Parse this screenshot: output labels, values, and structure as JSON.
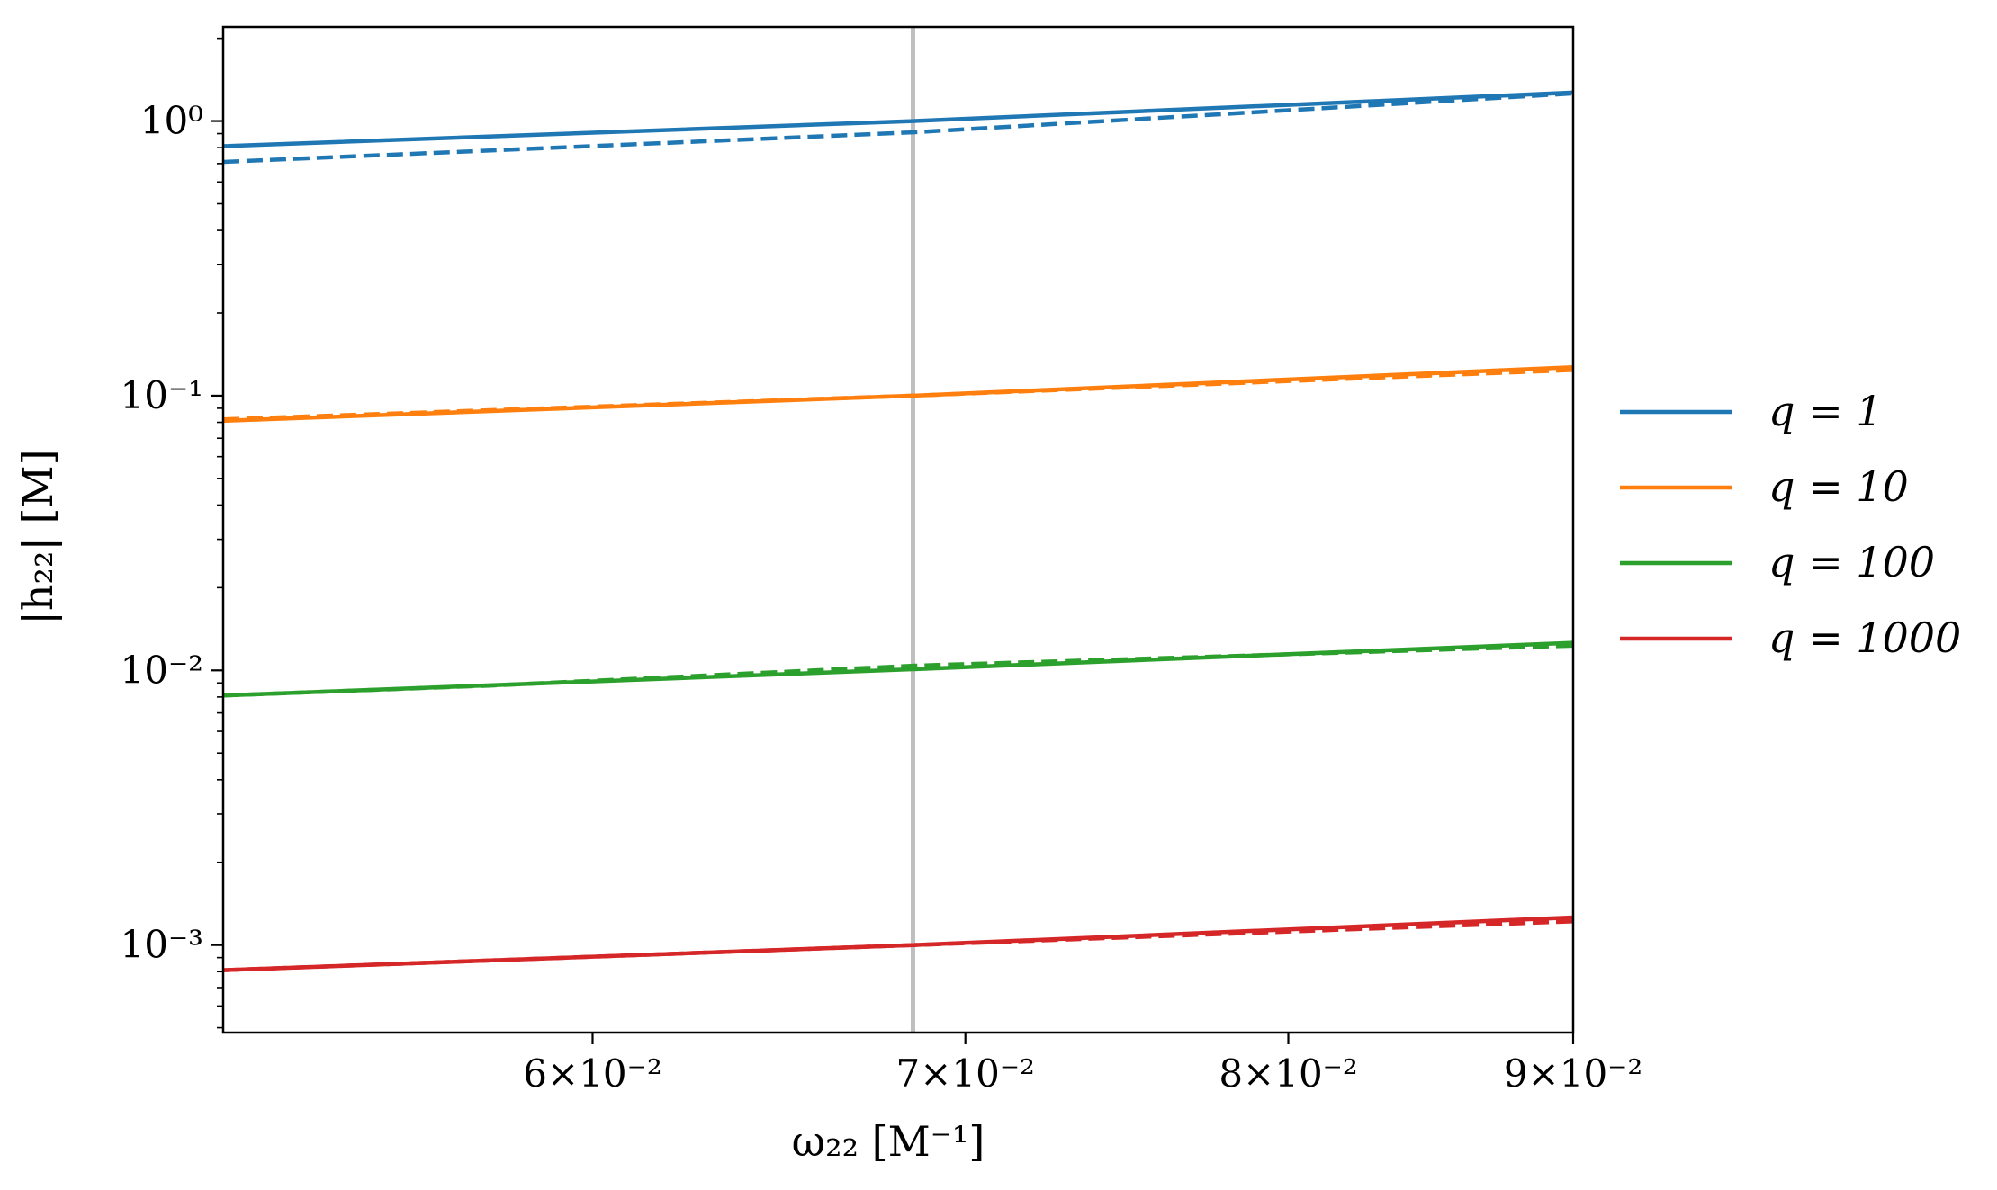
{
  "chart_data": {
    "type": "line",
    "x_scale": "log",
    "y_scale": "log",
    "xlim": [
      0.0515,
      0.09
    ],
    "ylim": [
      0.00048,
      2.2
    ],
    "xlabel": "ω₂₂ [M⁻¹]",
    "ylabel": "|h₂₂| [M]",
    "grid": false,
    "legend_position": "outside-right",
    "x_ticks": [
      {
        "value": 0.06,
        "label": "6×10⁻²"
      },
      {
        "value": 0.07,
        "label": "7×10⁻²"
      },
      {
        "value": 0.08,
        "label": "8×10⁻²"
      },
      {
        "value": 0.09,
        "label": "9×10⁻²"
      }
    ],
    "y_ticks": [
      {
        "value": 1,
        "label": "10⁰"
      },
      {
        "value": 0.1,
        "label": "10⁻¹"
      },
      {
        "value": 0.01,
        "label": "10⁻²"
      },
      {
        "value": 0.001,
        "label": "10⁻³"
      }
    ],
    "vertical_line": {
      "x": 0.0685,
      "color": "#bfbfbf"
    },
    "series": [
      {
        "name": "q = 1",
        "color": "#1f77b4",
        "style": "solid",
        "x": [
          0.0515,
          0.0685,
          0.09
        ],
        "y": [
          0.81,
          1.0,
          1.27
        ]
      },
      {
        "name": "",
        "color": "#1f77b4",
        "style": "dashed",
        "x": [
          0.0515,
          0.0685,
          0.09
        ],
        "y": [
          0.71,
          0.91,
          1.26
        ]
      },
      {
        "name": "q = 10",
        "color": "#ff7f0e",
        "style": "solid",
        "x": [
          0.0515,
          0.0685,
          0.09
        ],
        "y": [
          0.081,
          0.1,
          0.127
        ]
      },
      {
        "name": "",
        "color": "#ff7f0e",
        "style": "dashed",
        "x": [
          0.0515,
          0.0685,
          0.09
        ],
        "y": [
          0.082,
          0.1,
          0.124
        ]
      },
      {
        "name": "q = 100",
        "color": "#2ca02c",
        "style": "solid",
        "x": [
          0.0515,
          0.0685,
          0.09
        ],
        "y": [
          0.0081,
          0.0101,
          0.0126
        ]
      },
      {
        "name": "",
        "color": "#2ca02c",
        "style": "dashed",
        "x": [
          0.0515,
          0.0575,
          0.0685,
          0.09
        ],
        "y": [
          0.0081,
          0.0088,
          0.0104,
          0.0123
        ]
      },
      {
        "name": "q = 1000",
        "color": "#d62728",
        "style": "solid",
        "x": [
          0.0515,
          0.0685,
          0.09
        ],
        "y": [
          0.00081,
          0.001,
          0.00126
        ]
      },
      {
        "name": "",
        "color": "#d62728",
        "style": "dashed",
        "x": [
          0.0515,
          0.0685,
          0.09
        ],
        "y": [
          0.00081,
          0.001,
          0.00122
        ]
      }
    ]
  }
}
